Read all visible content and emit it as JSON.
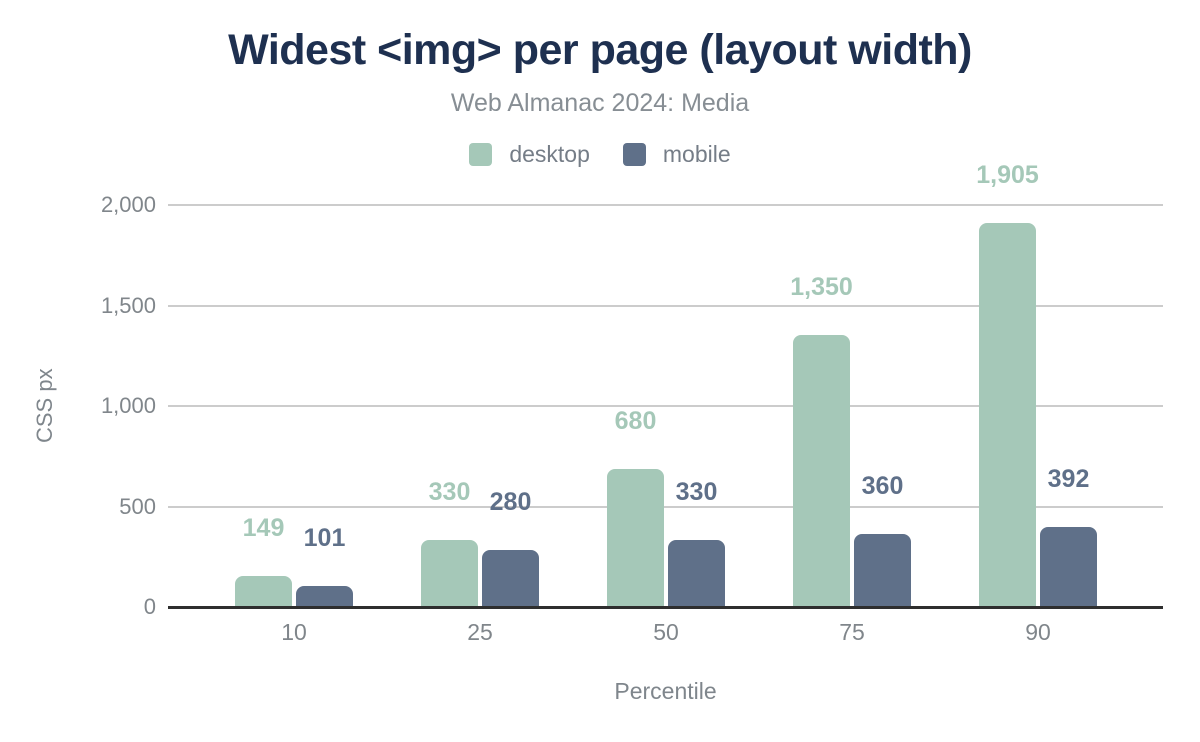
{
  "chart_data": {
    "type": "bar",
    "title": "Widest <img> per page (layout width)",
    "subtitle": "Web Almanac 2024: Media",
    "xlabel": "Percentile",
    "ylabel": "CSS px",
    "categories": [
      "10",
      "25",
      "50",
      "75",
      "90"
    ],
    "series": [
      {
        "name": "desktop",
        "color": "#a5c8b8",
        "values": [
          149,
          330,
          680,
          1350,
          1905
        ],
        "labels": [
          "149",
          "330",
          "680",
          "1,350",
          "1,905"
        ]
      },
      {
        "name": "mobile",
        "color": "#5f7089",
        "values": [
          101,
          280,
          330,
          360,
          392
        ],
        "labels": [
          "101",
          "280",
          "330",
          "360",
          "392"
        ]
      }
    ],
    "ylim": [
      0,
      2000
    ],
    "yticks": {
      "values": [
        0,
        500,
        1000,
        1500,
        2000
      ],
      "labels": [
        "0",
        "500",
        "1,000",
        "1,500",
        "2,000"
      ]
    },
    "grid": true,
    "legend_position": "top",
    "colors": {
      "title": "#1e3050",
      "subtitle": "#878e94",
      "axis_text": "#80868b",
      "gridline": "#cccccc",
      "axis_line": "#2e2e2e"
    }
  }
}
